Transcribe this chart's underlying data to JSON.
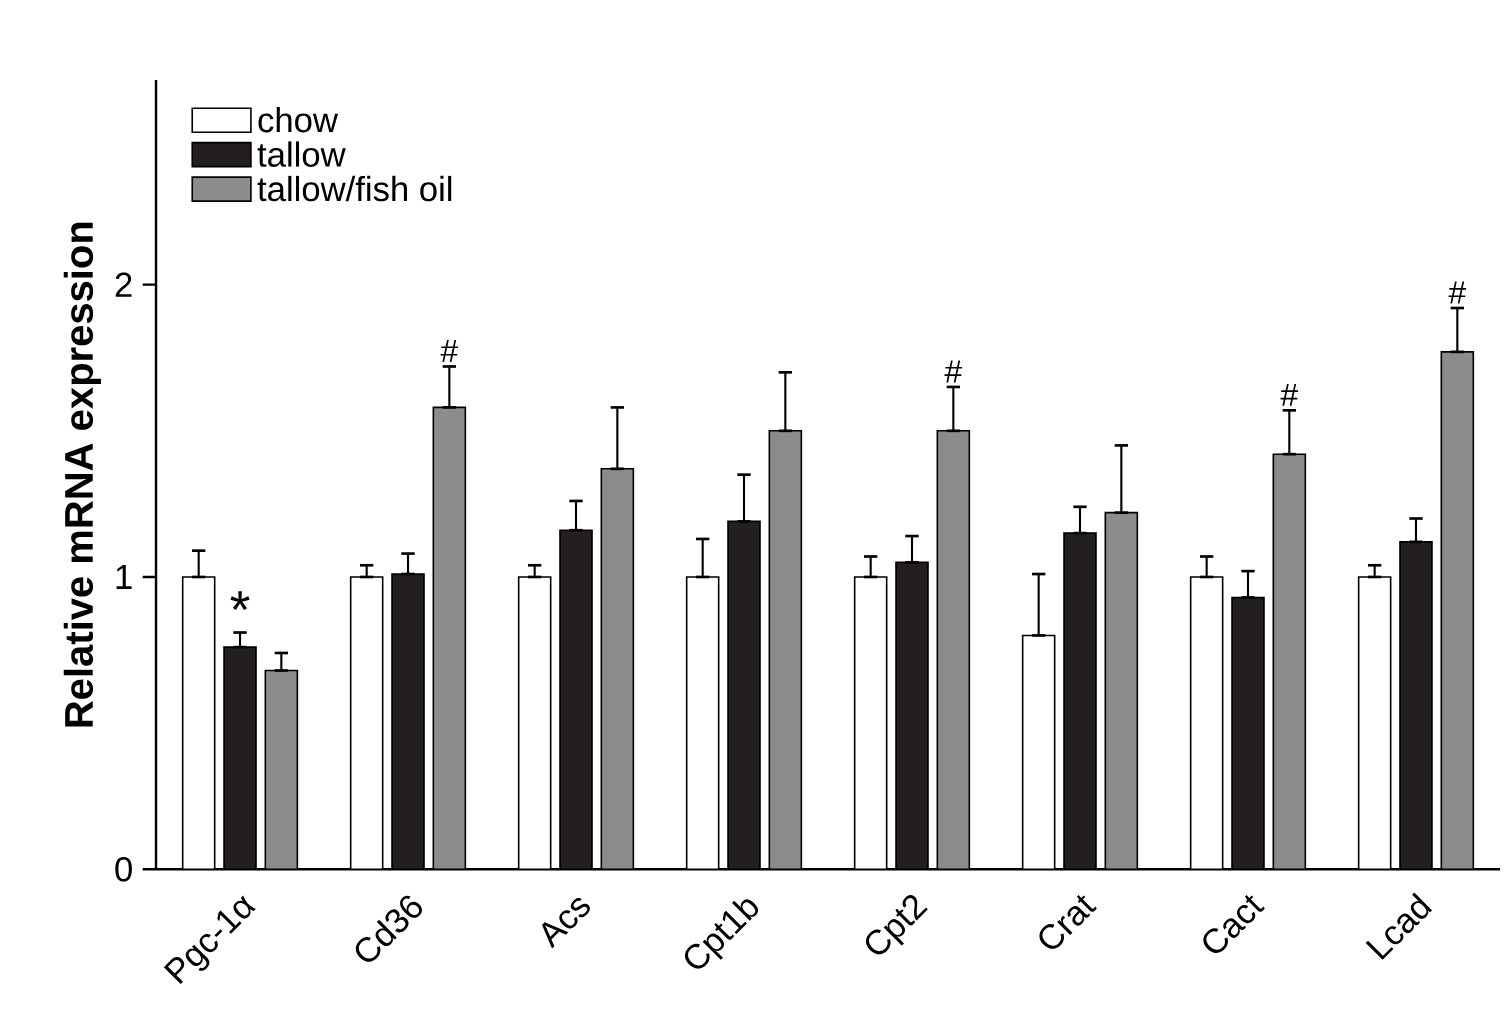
{
  "chart_data": {
    "type": "bar",
    "ylabel": "Relative mRNA expression",
    "categories": [
      "Pgc-1α",
      "Cd36",
      "Acs",
      "Cpt1b",
      "Cpt2",
      "Crat",
      "Cact",
      "Lcad"
    ],
    "series": [
      {
        "name": "chow",
        "color": "#ffffff",
        "values": [
          1.0,
          1.0,
          1.0,
          1.0,
          1.0,
          0.8,
          1.0,
          1.0
        ],
        "errors": [
          [
            1.0,
            1.09
          ],
          [
            1.0,
            1.04
          ],
          [
            1.0,
            1.04
          ],
          [
            1.0,
            1.13
          ],
          [
            1.0,
            1.07
          ],
          [
            0.8,
            1.01
          ],
          [
            1.0,
            1.07
          ],
          [
            1.0,
            1.04
          ]
        ]
      },
      {
        "name": "tallow",
        "color": "#231f20",
        "values": [
          0.76,
          1.01,
          1.16,
          1.19,
          1.05,
          1.15,
          0.93,
          1.12
        ],
        "errors": [
          [
            0.76,
            0.81
          ],
          [
            1.01,
            1.08
          ],
          [
            1.16,
            1.26
          ],
          [
            1.19,
            1.35
          ],
          [
            1.05,
            1.14
          ],
          [
            1.15,
            1.24
          ],
          [
            0.93,
            1.02
          ],
          [
            1.12,
            1.2
          ]
        ]
      },
      {
        "name": "tallow/fish oil",
        "color": "#8c8c8c",
        "values": [
          0.68,
          1.58,
          1.37,
          1.5,
          1.5,
          1.22,
          1.42,
          1.77
        ],
        "errors": [
          [
            0.68,
            0.74
          ],
          [
            1.58,
            1.72
          ],
          [
            1.37,
            1.58
          ],
          [
            1.5,
            1.7
          ],
          [
            1.5,
            1.65
          ],
          [
            1.22,
            1.45
          ],
          [
            1.42,
            1.57
          ],
          [
            1.77,
            1.92
          ]
        ]
      }
    ],
    "ylim": [
      0,
      2.7
    ],
    "yticks": [
      0,
      1,
      2
    ],
    "legend": "top left",
    "grid": false,
    "annotations": [
      {
        "text": "*",
        "x": "Pgc-1α",
        "y": 0.76
      },
      {
        "text": "#",
        "y": 1.72
      },
      {
        "text": "#",
        "y": 1.65
      },
      {
        "text": "#",
        "y": 1.57
      },
      {
        "text": "#",
        "y": 1.92
      }
    ]
  }
}
